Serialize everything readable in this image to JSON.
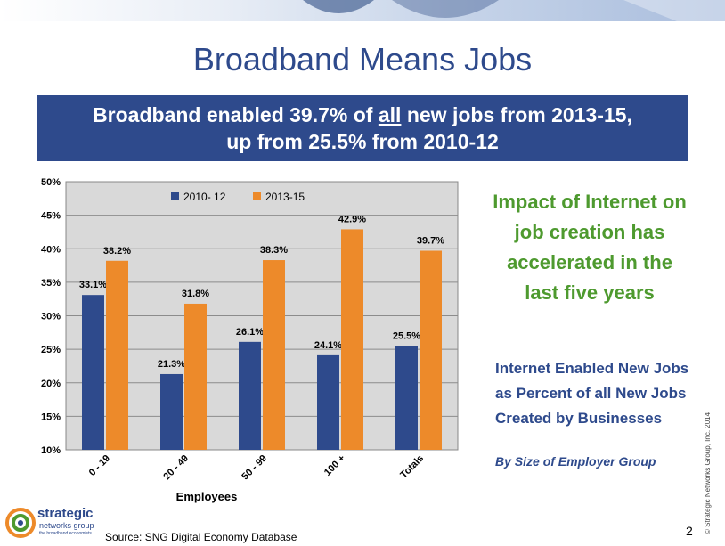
{
  "slide": {
    "title": "Broadband Means Jobs",
    "headline_part1": "Broadband enabled 39.7% of ",
    "headline_underlined": "all",
    "headline_part2": " new jobs from 2013-15,",
    "headline_line2": "up from 25.5% from 2010-12",
    "impact_text": "Impact of Internet on job creation has accelerated in the last five years",
    "desc_text": "Internet Enabled New Jobs as Percent of all New Jobs Created by Businesses",
    "desc_sub": "By Size of Employer Group",
    "copyright": "© Strategic Networks Group, Inc. 2014",
    "page_number": "2",
    "source": "Source: SNG Digital Economy Database",
    "logo": {
      "name": "strategic",
      "name2": "networks group",
      "tagline": "the broadband economists"
    }
  },
  "colors": {
    "navy": "#2e4a8c",
    "green": "#4e9a2f",
    "series_2010": "#2e4a8c",
    "series_2013": "#ed8a2a",
    "plot_bg": "#d9d9d9"
  },
  "chart_data": {
    "type": "bar",
    "categories": [
      "0 - 19",
      "20 - 49",
      "50 - 99",
      "100 +",
      "Totals"
    ],
    "series": [
      {
        "name": "2010- 12",
        "values": [
          33.1,
          21.3,
          26.1,
          24.1,
          25.5
        ],
        "labels": [
          "33.1%",
          "21.3%",
          "26.1%",
          "24.1%",
          "25.5%"
        ]
      },
      {
        "name": "2013-15",
        "values": [
          38.2,
          31.8,
          38.3,
          42.9,
          39.7
        ],
        "labels": [
          "38.2%",
          "31.8%",
          "38.3%",
          "42.9%",
          "39.7%"
        ]
      }
    ],
    "xlabel": "Employees",
    "ylabel": "",
    "ylim": [
      10,
      50
    ],
    "yticks": [
      "10%",
      "15%",
      "20%",
      "25%",
      "30%",
      "35%",
      "40%",
      "45%",
      "50%"
    ],
    "legend": "top",
    "grid": true
  }
}
